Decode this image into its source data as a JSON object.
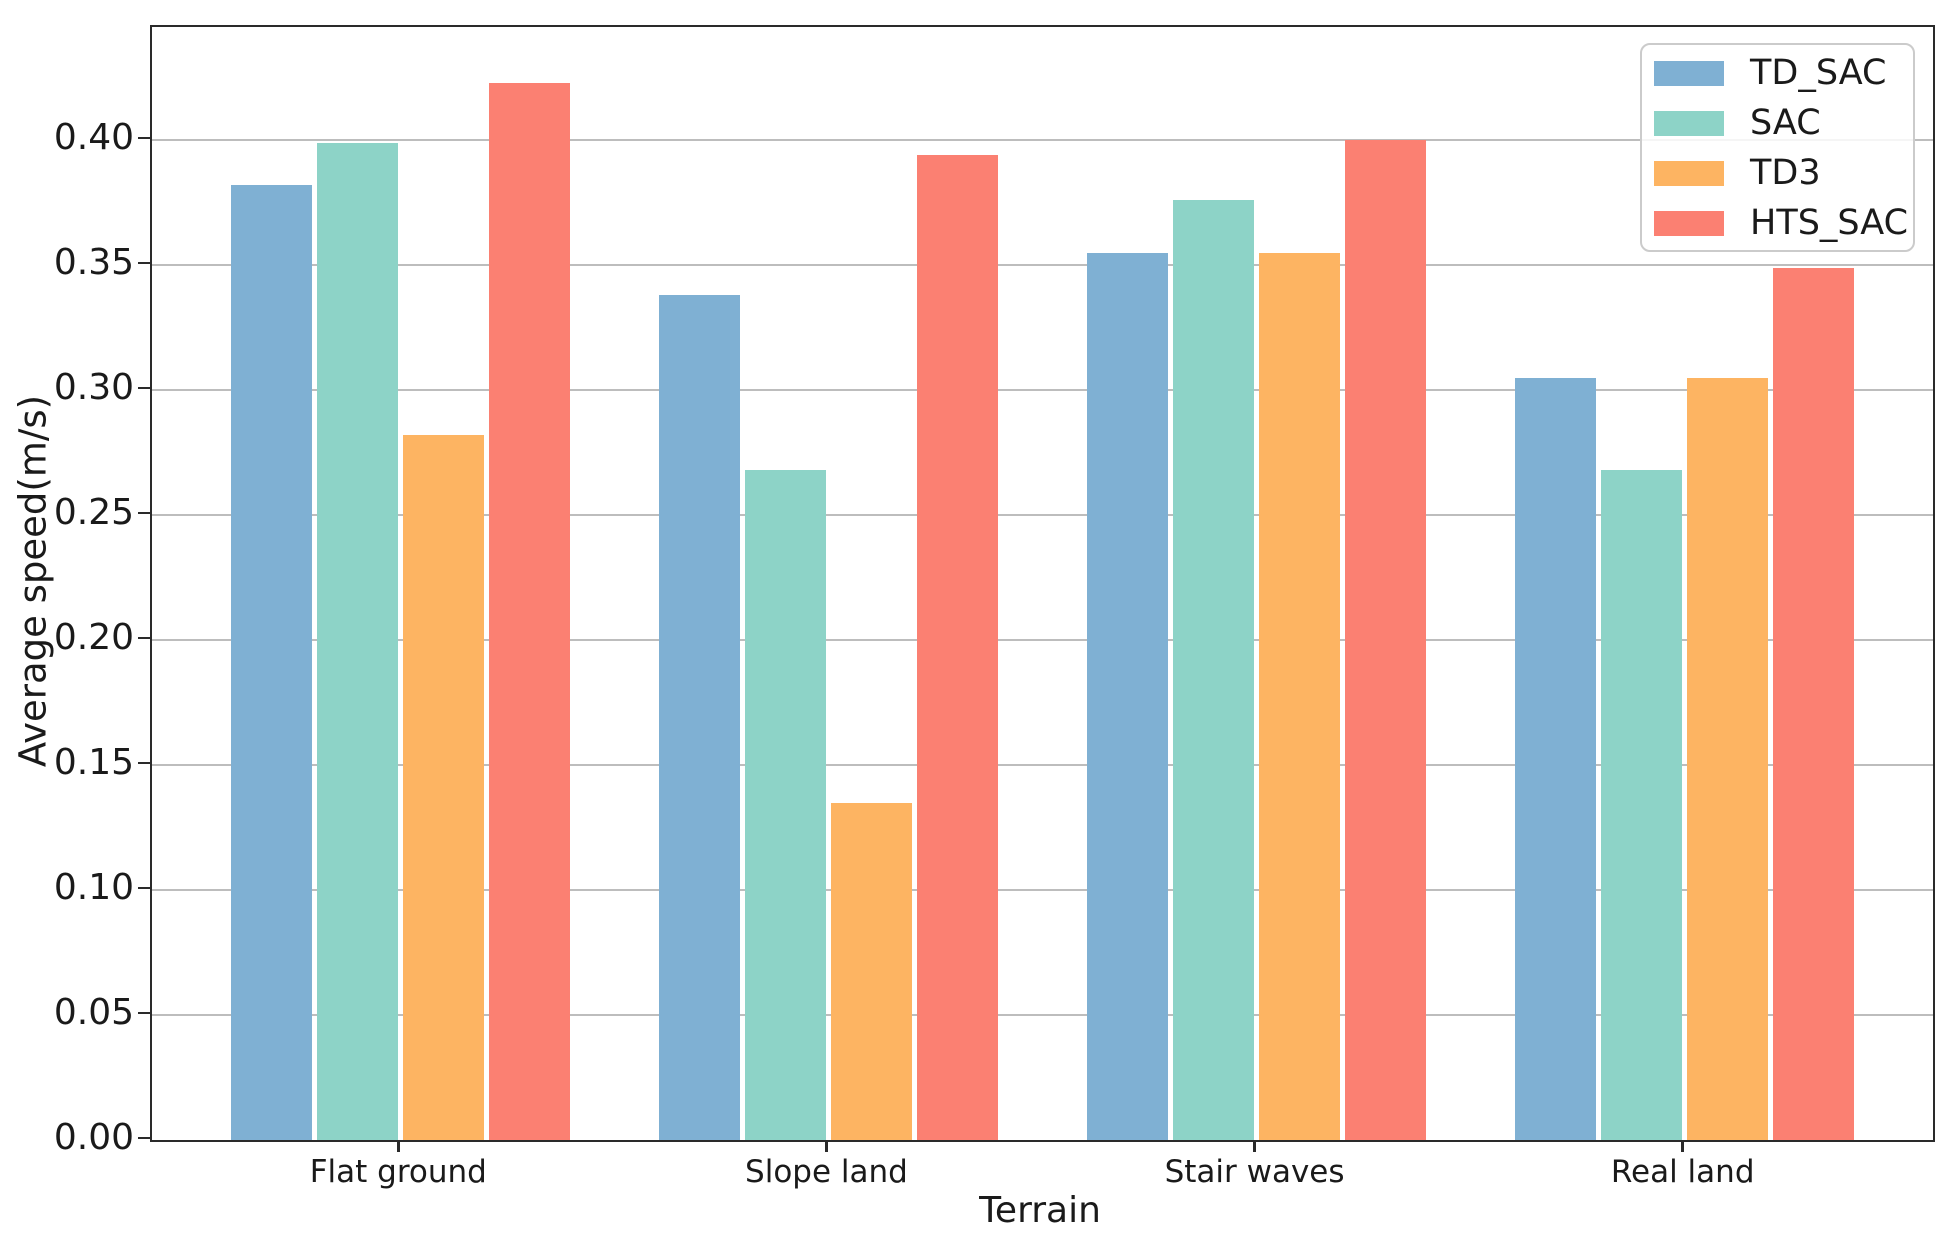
{
  "figure": {
    "background": "#ffffff",
    "spine_color": "#2a2a2a",
    "grid_color": "#bdbdbd",
    "text_color": "#1a1a1a"
  },
  "chart_data": {
    "type": "bar",
    "title": "",
    "xlabel": "Terrain",
    "ylabel": "Average speed(m/s)",
    "categories": [
      "Flat ground",
      "Slope land",
      "Stair waves",
      "Real land"
    ],
    "series": [
      {
        "name": "TD_SAC",
        "color": "#7FB0D3",
        "values": [
          0.382,
          0.338,
          0.355,
          0.305
        ]
      },
      {
        "name": "SAC",
        "color": "#8DD3C7",
        "values": [
          0.399,
          0.268,
          0.376,
          0.268
        ]
      },
      {
        "name": "TD3",
        "color": "#FDB462",
        "values": [
          0.282,
          0.135,
          0.355,
          0.305
        ]
      },
      {
        "name": "HTS_SAC",
        "color": "#FB8072",
        "values": [
          0.423,
          0.394,
          0.4,
          0.349
        ]
      }
    ],
    "ylim": [
      0,
      0.4452
    ],
    "yticks": [
      {
        "value": 0.0,
        "label": "0.00"
      },
      {
        "value": 0.05,
        "label": "0.05"
      },
      {
        "value": 0.1,
        "label": "0.10"
      },
      {
        "value": 0.15,
        "label": "0.15"
      },
      {
        "value": 0.2,
        "label": "0.20"
      },
      {
        "value": 0.25,
        "label": "0.25"
      },
      {
        "value": 0.3,
        "label": "0.30"
      },
      {
        "value": 0.35,
        "label": "0.35"
      },
      {
        "value": 0.4,
        "label": "0.40"
      }
    ],
    "grid": true,
    "legend_position": "upper right"
  }
}
